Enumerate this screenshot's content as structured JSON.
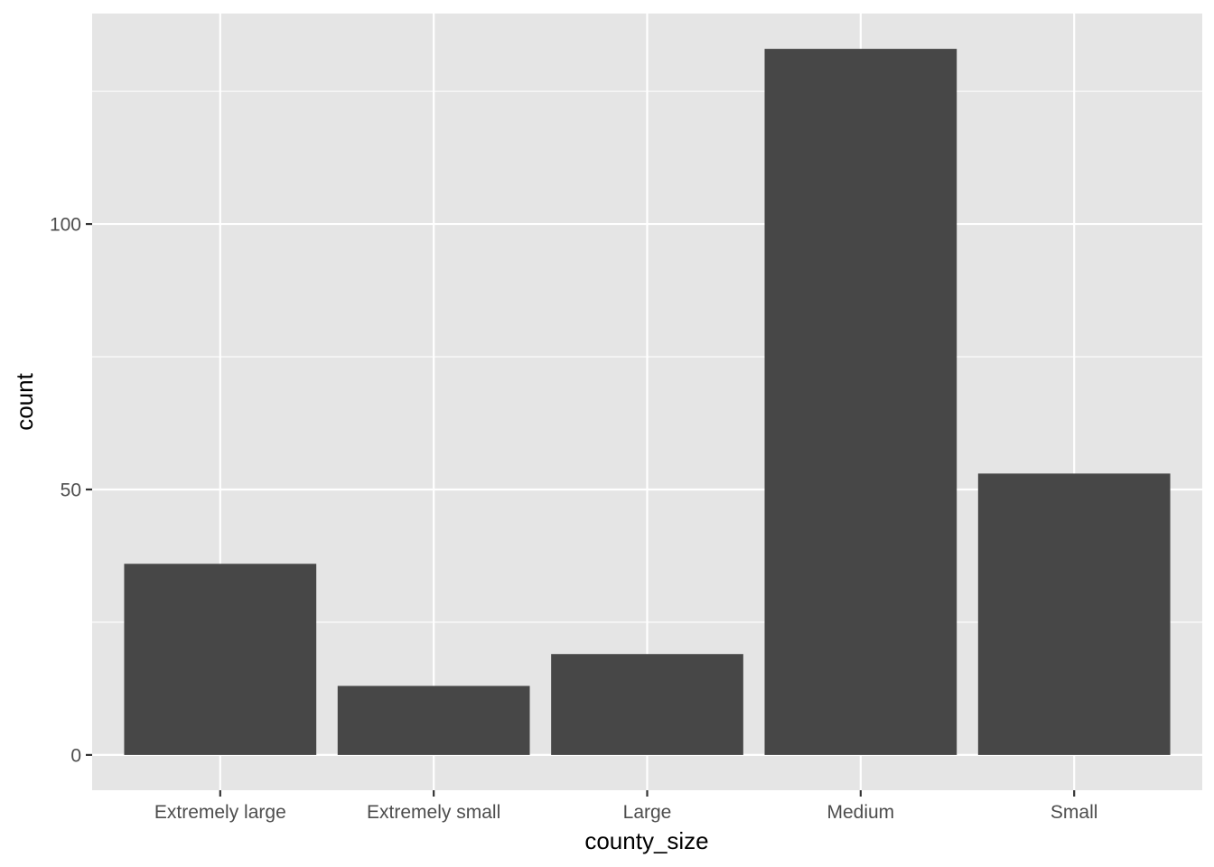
{
  "chart_data": {
    "type": "bar",
    "categories": [
      "Extremely large",
      "Extremely small",
      "Large",
      "Medium",
      "Small"
    ],
    "values": [
      36,
      13,
      19,
      133,
      53
    ],
    "xlabel": "county_size",
    "ylabel": "count",
    "ylim": [
      -6.65,
      139.65
    ],
    "yticks": [
      0,
      50,
      100
    ],
    "ytick_labels": [
      "0",
      "50",
      "100"
    ],
    "y_minor_ticks": [
      25,
      75,
      125
    ],
    "grid": true,
    "legend": "none",
    "colors": {
      "panel": "#e5e5e5",
      "grid": "#ffffff",
      "bar": "#474747",
      "tick_label": "#4d4d4d",
      "axis_title": "#000000"
    }
  }
}
